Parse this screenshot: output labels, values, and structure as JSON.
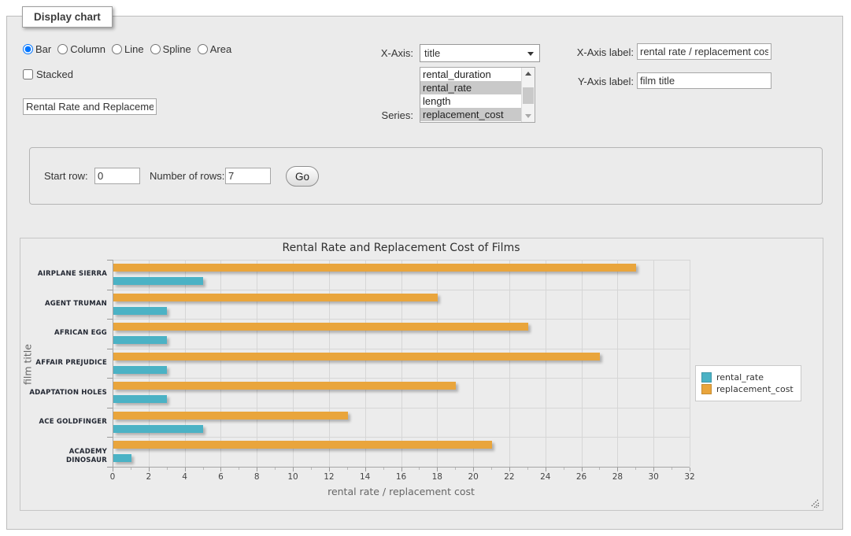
{
  "panel": {
    "legend": "Display chart"
  },
  "chart_type": {
    "options": [
      {
        "label": "Bar",
        "selected": true
      },
      {
        "label": "Column",
        "selected": false
      },
      {
        "label": "Line",
        "selected": false
      },
      {
        "label": "Spline",
        "selected": false
      },
      {
        "label": "Area",
        "selected": false
      }
    ],
    "stacked": {
      "label": "Stacked",
      "checked": false
    }
  },
  "title_input": {
    "value": "Rental Rate and Replacement Cost of Films"
  },
  "x_axis": {
    "label": "X-Axis:",
    "selected": "title"
  },
  "series": {
    "label": "Series:",
    "options": [
      {
        "label": "rental_duration",
        "selected": false
      },
      {
        "label": "rental_rate",
        "selected": true
      },
      {
        "label": "length",
        "selected": false
      },
      {
        "label": "replacement_cost",
        "selected": true
      }
    ]
  },
  "x_axis_label": {
    "label": "X-Axis label:",
    "value": "rental rate / replacement cost"
  },
  "y_axis_label": {
    "label": "Y-Axis label:",
    "value": "film title"
  },
  "rows_form": {
    "start_row_label": "Start row:",
    "start_row_value": "0",
    "num_rows_label": "Number of rows:",
    "num_rows_value": "7",
    "go_label": "Go"
  },
  "chart_data": {
    "type": "bar",
    "orientation": "horizontal",
    "title": "Rental Rate and Replacement Cost of Films",
    "xlabel": "rental rate / replacement cost",
    "ylabel": "film title",
    "xlim": [
      0,
      32
    ],
    "x_tick_step": 2,
    "grid": true,
    "legend_position": "right",
    "categories_top_to_bottom": [
      "AIRPLANE SIERRA",
      "AGENT TRUMAN",
      "AFRICAN EGG",
      "AFFAIR PREJUDICE",
      "ADAPTATION HOLES",
      "ACE GOLDFINGER",
      "ACADEMY DINOSAUR"
    ],
    "series": [
      {
        "name": "rental_rate",
        "color": "#4BB2C5",
        "values": [
          4.99,
          2.99,
          2.99,
          2.99,
          2.99,
          4.99,
          0.99
        ]
      },
      {
        "name": "replacement_cost",
        "color": "#E9A53C",
        "values": [
          28.99,
          17.99,
          22.99,
          26.99,
          18.99,
          12.99,
          20.99
        ]
      }
    ]
  }
}
